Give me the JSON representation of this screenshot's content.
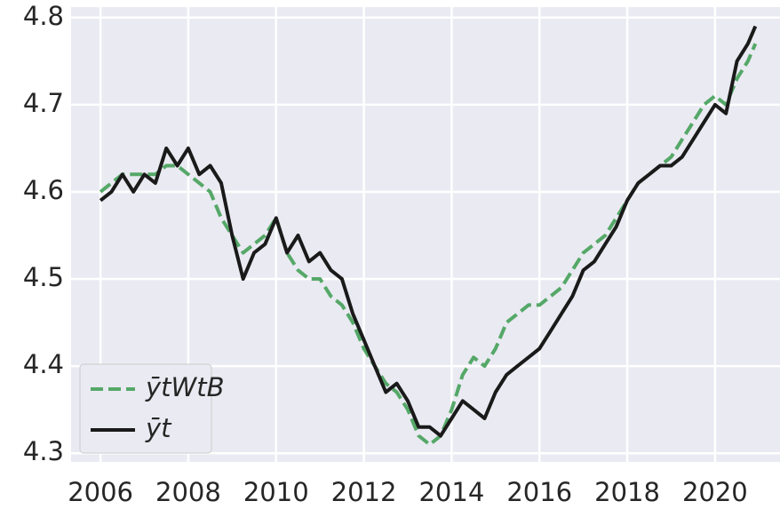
{
  "chart_data": {
    "type": "line",
    "x": [
      2006,
      2006.25,
      2006.5,
      2006.75,
      2007,
      2007.25,
      2007.5,
      2007.75,
      2008,
      2008.25,
      2008.5,
      2008.75,
      2009,
      2009.25,
      2009.5,
      2009.75,
      2010,
      2010.25,
      2010.5,
      2010.75,
      2011,
      2011.25,
      2011.5,
      2011.75,
      2012,
      2012.25,
      2012.5,
      2012.75,
      2013,
      2013.25,
      2013.5,
      2013.75,
      2014,
      2014.25,
      2014.5,
      2014.75,
      2015,
      2015.25,
      2015.5,
      2015.75,
      2016,
      2016.25,
      2016.5,
      2016.75,
      2017,
      2017.25,
      2017.5,
      2017.75,
      2018,
      2018.25,
      2018.5,
      2018.75,
      2019,
      2019.25,
      2019.5,
      2019.75,
      2020,
      2020.25,
      2020.5,
      2020.75,
      2020.92
    ],
    "series": [
      {
        "name": "ȳtWtB",
        "color": "#55a868",
        "dash": true,
        "values": [
          4.6,
          4.61,
          4.62,
          4.62,
          4.62,
          4.62,
          4.63,
          4.63,
          4.62,
          4.61,
          4.6,
          4.57,
          4.55,
          4.53,
          4.54,
          4.55,
          4.57,
          4.53,
          4.51,
          4.5,
          4.5,
          4.48,
          4.47,
          4.45,
          4.42,
          4.4,
          4.38,
          4.37,
          4.35,
          4.32,
          4.31,
          4.32,
          4.35,
          4.39,
          4.41,
          4.4,
          4.42,
          4.45,
          4.46,
          4.47,
          4.47,
          4.48,
          4.49,
          4.51,
          4.53,
          4.54,
          4.55,
          4.57,
          4.59,
          4.61,
          4.62,
          4.63,
          4.64,
          4.66,
          4.68,
          4.7,
          4.71,
          4.7,
          4.73,
          4.75,
          4.77
        ]
      },
      {
        "name": "ȳt",
        "color": "#1a1a1a",
        "dash": false,
        "values": [
          4.59,
          4.6,
          4.62,
          4.6,
          4.62,
          4.61,
          4.65,
          4.63,
          4.65,
          4.62,
          4.63,
          4.61,
          4.55,
          4.5,
          4.53,
          4.54,
          4.57,
          4.53,
          4.55,
          4.52,
          4.53,
          4.51,
          4.5,
          4.46,
          4.43,
          4.4,
          4.37,
          4.38,
          4.36,
          4.33,
          4.33,
          4.32,
          4.34,
          4.36,
          4.35,
          4.34,
          4.37,
          4.39,
          4.4,
          4.41,
          4.42,
          4.44,
          4.46,
          4.48,
          4.51,
          4.52,
          4.54,
          4.56,
          4.59,
          4.61,
          4.62,
          4.63,
          4.63,
          4.64,
          4.66,
          4.68,
          4.7,
          4.69,
          4.75,
          4.77,
          4.79
        ]
      }
    ],
    "xlim": [
      2005.33,
      2021.48
    ],
    "xticks": [
      2006,
      2008,
      2010,
      2012,
      2014,
      2016,
      2018,
      2020
    ],
    "ylim": [
      4.29,
      4.812
    ],
    "yticks": [
      4.3,
      4.4,
      4.5,
      4.6,
      4.7,
      4.8
    ],
    "grid": true,
    "legend": "lower left"
  }
}
